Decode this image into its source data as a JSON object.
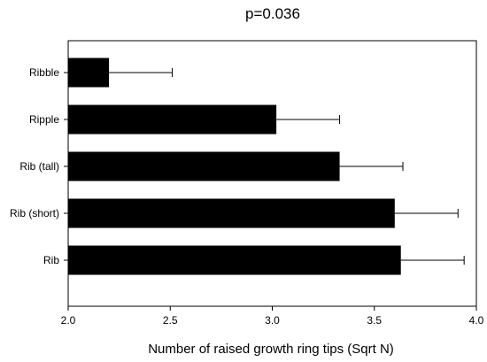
{
  "chart_data": {
    "type": "bar",
    "orientation": "horizontal",
    "title": "p=0.036",
    "xlabel": "Number of raised growth ring tips (Sqrt N)",
    "ylabel": "",
    "categories": [
      "Ribble",
      "Ripple",
      "Rib (tall)",
      "Rib (short)",
      "Rib"
    ],
    "values": [
      2.2,
      3.02,
      3.33,
      3.6,
      3.63
    ],
    "error_plus": [
      0.31,
      0.31,
      0.31,
      0.31,
      0.31
    ],
    "xlim": [
      2.0,
      4.0
    ],
    "xticks": [
      "2.0",
      "2.5",
      "3.0",
      "3.5",
      "4.0"
    ],
    "grid": false,
    "bar_color": "#000000"
  }
}
